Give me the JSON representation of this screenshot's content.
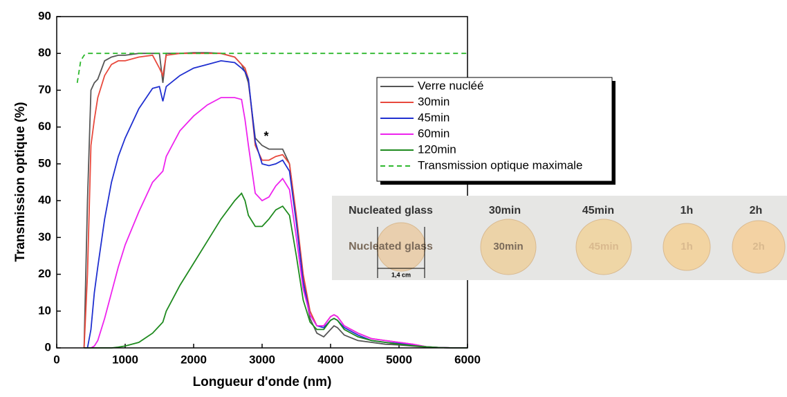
{
  "chart_data": {
    "type": "line",
    "x_label": "Longueur d'onde (nm)",
    "y_label": "Transmission optique (%)",
    "annotation": "*",
    "x": [
      300,
      350,
      400,
      450,
      500,
      550,
      600,
      700,
      800,
      900,
      1000,
      1200,
      1400,
      1500,
      1550,
      1600,
      1800,
      2000,
      2200,
      2400,
      2600,
      2700,
      2750,
      2800,
      2900,
      3000,
      3100,
      3200,
      3300,
      3400,
      3500,
      3600,
      3700,
      3800,
      3900,
      4000,
      4050,
      4100,
      4200,
      4400,
      4600,
      4800,
      5000,
      5200,
      5400,
      5600,
      5800,
      6000
    ],
    "series": [
      {
        "name": "Verre nucléé",
        "color": "#555555",
        "values": [
          null,
          null,
          0,
          40,
          70,
          72,
          73,
          78,
          79,
          79.5,
          79.5,
          80,
          80,
          80,
          72,
          80,
          80,
          80.2,
          80.2,
          80,
          79,
          77,
          75,
          72,
          57,
          55,
          54,
          54,
          54,
          50,
          35,
          18,
          8,
          4,
          3,
          5,
          6,
          5.5,
          3.5,
          2,
          1.5,
          1,
          0.8,
          0.5,
          0.2,
          0.1,
          0,
          0
        ]
      },
      {
        "name": "30min",
        "color": "#e8483c",
        "values": [
          null,
          null,
          0,
          20,
          55,
          62,
          68,
          74,
          77,
          78,
          78,
          79,
          79.5,
          76,
          74,
          79.5,
          80,
          80,
          80,
          80,
          79,
          77,
          76,
          73,
          55,
          51,
          51,
          52,
          52.5,
          50,
          36,
          20,
          10,
          6,
          6,
          8.5,
          9,
          8.5,
          6,
          4,
          2.5,
          2,
          1.5,
          1,
          0.3,
          0.1,
          0,
          0
        ]
      },
      {
        "name": "45min",
        "color": "#1f2fd0",
        "values": [
          null,
          null,
          0,
          0,
          5,
          15,
          22,
          35,
          45,
          52,
          57,
          65,
          70.5,
          71,
          67,
          71,
          74,
          76,
          77,
          78,
          77.5,
          76,
          75,
          73,
          56,
          50,
          49.5,
          50,
          51,
          48,
          34,
          18,
          9,
          6,
          5.5,
          7.5,
          8,
          7.5,
          5.5,
          3.5,
          2,
          1.5,
          1.2,
          0.8,
          0.3,
          0.1,
          0,
          0
        ]
      },
      {
        "name": "60min",
        "color": "#ee22ee",
        "values": [
          null,
          null,
          0,
          0,
          0,
          0.5,
          2,
          8,
          15,
          22,
          28,
          37,
          45,
          47,
          48,
          52,
          59,
          63,
          66,
          68,
          68,
          67.5,
          62,
          55,
          42,
          40,
          41,
          44,
          46,
          43,
          30,
          16,
          9,
          6,
          6,
          8.5,
          9,
          8.5,
          6,
          4,
          2.5,
          2,
          1.5,
          1,
          0.3,
          0.1,
          0,
          0
        ]
      },
      {
        "name": "120min",
        "color": "#1e8a1e",
        "values": [
          null,
          null,
          0,
          0,
          0,
          0,
          0,
          0,
          0,
          0.2,
          0.5,
          1.5,
          4,
          6,
          7,
          10,
          17,
          23,
          29,
          35,
          40,
          42,
          40,
          36,
          33,
          33,
          35,
          37.5,
          38.5,
          36,
          25,
          13,
          7,
          5,
          5,
          7.5,
          8,
          7.5,
          5,
          3,
          2,
          1.5,
          1,
          0.6,
          0.3,
          0.1,
          0,
          0
        ]
      },
      {
        "name": "Transmission optique maximale",
        "color": "#2db82d",
        "dashed": true,
        "values": [
          72,
          78,
          79.5,
          80,
          80,
          80,
          80,
          80,
          80,
          80,
          80,
          80,
          80,
          80,
          80,
          80,
          80,
          80,
          80,
          80,
          80,
          80,
          80,
          80,
          80,
          80,
          80,
          80,
          80,
          80,
          80,
          80,
          80,
          80,
          80,
          80,
          80,
          80,
          80,
          80,
          80,
          80,
          80,
          80,
          80,
          80,
          80,
          80
        ]
      }
    ],
    "xlim": [
      0,
      6000
    ],
    "xticks": [
      0,
      1000,
      2000,
      3000,
      4000,
      5000,
      6000
    ],
    "ylim": [
      0,
      90
    ],
    "yticks": [
      0,
      10,
      20,
      30,
      40,
      50,
      60,
      70,
      80,
      90
    ]
  },
  "photo": {
    "labels": [
      "Nucleated glass",
      "30min",
      "45min",
      "1h",
      "2h"
    ],
    "disc_texts": [
      "Nucleated glass",
      "30min",
      "45min",
      "1h",
      "2h"
    ],
    "scale": "1,4 cm"
  }
}
